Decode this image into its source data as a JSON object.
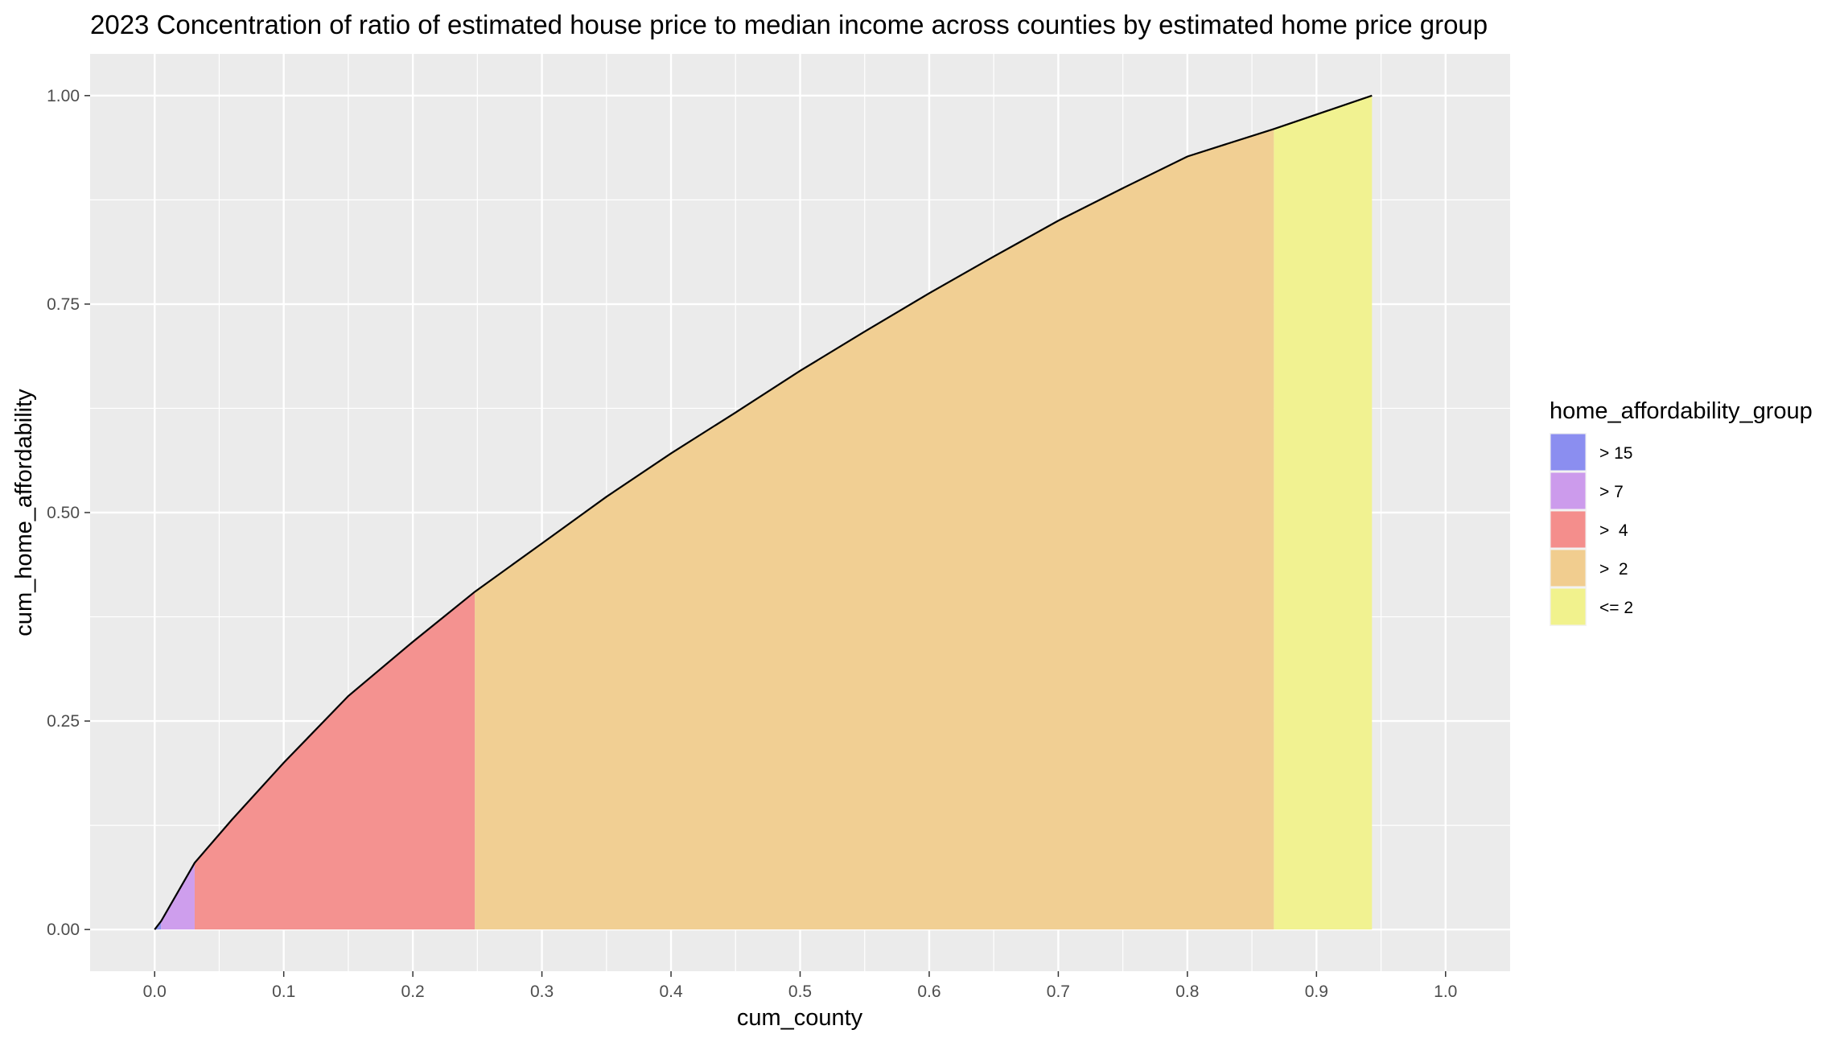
{
  "chart_data": {
    "type": "area",
    "title": "2023 Concentration of ratio of estimated house price to median income across counties by estimated home price group",
    "xlabel": "cum_county",
    "ylabel": "cum_home_affordability",
    "xlim": [
      -0.05,
      1.05
    ],
    "ylim": [
      -0.05,
      1.05
    ],
    "x_ticks": [
      "0.0",
      "0.1",
      "0.2",
      "0.3",
      "0.4",
      "0.5",
      "0.6",
      "0.7",
      "0.8",
      "0.9",
      "1.0"
    ],
    "y_ticks": [
      "0.00",
      "0.25",
      "0.50",
      "0.75",
      "1.00"
    ],
    "x_tick_values": [
      0,
      0.1,
      0.2,
      0.3,
      0.4,
      0.5,
      0.6,
      0.7,
      0.8,
      0.9,
      1.0
    ],
    "y_tick_values": [
      0,
      0.25,
      0.5,
      0.75,
      1.0
    ],
    "grid": true,
    "legend": {
      "title": "home_affordability_group",
      "position": "right",
      "items": [
        {
          "label": "> 15",
          "color": "#8b8ef0"
        },
        {
          "label": "> 7",
          "color": "#cc9bec"
        },
        {
          "label": ">  4",
          "color": "#f48e8c"
        },
        {
          "label": ">  2",
          "color": "#f1cd8f"
        },
        {
          "label": "<= 2",
          "color": "#f1f28d"
        }
      ]
    },
    "curve": {
      "x": [
        0.0,
        0.005,
        0.031,
        0.06,
        0.1,
        0.15,
        0.2,
        0.248,
        0.3,
        0.35,
        0.4,
        0.45,
        0.5,
        0.55,
        0.6,
        0.65,
        0.7,
        0.75,
        0.8,
        0.867,
        0.943
      ],
      "y": [
        0.0,
        0.01,
        0.08,
        0.132,
        0.2,
        0.28,
        0.345,
        0.405,
        0.463,
        0.519,
        0.571,
        0.62,
        0.67,
        0.717,
        0.763,
        0.807,
        0.85,
        0.889,
        0.927,
        0.96,
        1.0
      ]
    },
    "series": [
      {
        "name": "> 15",
        "x_range": [
          0.0,
          0.005
        ]
      },
      {
        "name": "> 7",
        "x_range": [
          0.005,
          0.031
        ]
      },
      {
        "name": ">  4",
        "x_range": [
          0.031,
          0.248
        ]
      },
      {
        "name": ">  2",
        "x_range": [
          0.248,
          0.867
        ]
      },
      {
        "name": "<= 2",
        "x_range": [
          0.867,
          0.943
        ]
      }
    ]
  }
}
